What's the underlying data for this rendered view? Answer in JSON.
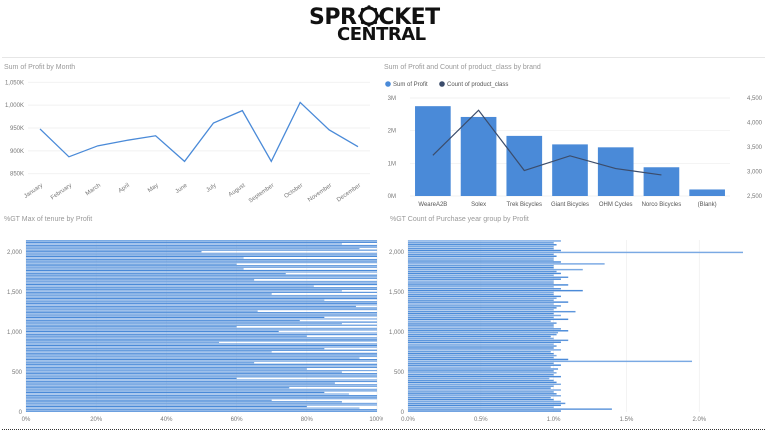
{
  "logo": {
    "line1": "SPR",
    "line1b": "CKET",
    "line2": "CENTRAL"
  },
  "titles": {
    "profit_by_month": "Sum of Profit by Month",
    "profit_count_brand": "Sum of Profit and Count of product_class by brand",
    "tenure": "%GT Max of tenure by Profit",
    "purchase": "%GT Count of Purchase year group by Profit"
  },
  "legend": {
    "bar": "Sum of Profit",
    "line": "Count of product_class"
  },
  "colors": {
    "bar": "#4a8ad8",
    "line": "#3b4c6b",
    "grid": "#eeeeee"
  },
  "chart_data": [
    {
      "type": "line",
      "title": "Sum of Profit by Month",
      "categories": [
        "January",
        "February",
        "March",
        "April",
        "May",
        "June",
        "July",
        "August",
        "September",
        "October",
        "November",
        "December"
      ],
      "values": [
        948,
        887,
        911,
        923,
        933,
        877,
        961,
        988,
        877,
        1006,
        946,
        909
      ],
      "yticks": [
        "850K",
        "900K",
        "950K",
        "1,000K",
        "1,050K"
      ],
      "ylim": [
        845,
        1055
      ],
      "grid": true
    },
    {
      "type": "bar",
      "title": "Sum of Profit and Count of product_class by brand",
      "categories": [
        "WeareA2B",
        "Solex",
        "Trek Bicycles",
        "Giant Bicycles",
        "OHM Cycles",
        "Norco Bicycles",
        "(Blank)"
      ],
      "series": [
        {
          "name": "Sum of Profit",
          "kind": "bar",
          "values": [
            2.75,
            2.42,
            1.84,
            1.58,
            1.49,
            0.88,
            0.2
          ]
        },
        {
          "name": "Count of product_class",
          "kind": "line",
          "values": [
            3330,
            4250,
            3020,
            3320,
            3060,
            2930,
            null
          ]
        }
      ],
      "yticks_left": [
        "0M",
        "1M",
        "2M",
        "3M"
      ],
      "ylim_left": [
        0,
        3
      ],
      "yticks_right": [
        "2,500",
        "3,000",
        "3,500",
        "4,000",
        "4,500"
      ],
      "ylim_right": [
        2500,
        4500
      ],
      "legend": "top-left"
    },
    {
      "type": "bar",
      "title": "%GT Max of tenure by Profit",
      "orientation": "horizontal",
      "xticks": [
        "0%",
        "20%",
        "40%",
        "60%",
        "80%",
        "100%"
      ],
      "xlim": [
        0,
        100
      ],
      "yticks": [
        "0",
        "500",
        "1,000",
        "1,500",
        "2,000"
      ],
      "ylim": [
        0,
        2150
      ],
      "values": [
        100,
        100,
        95,
        80,
        100,
        100,
        90,
        70,
        100,
        100,
        100,
        92,
        85,
        100,
        100,
        75,
        100,
        100,
        88,
        100,
        100,
        60,
        100,
        100,
        100,
        90,
        100,
        80,
        100,
        100,
        100,
        65,
        100,
        100,
        95,
        100,
        100,
        100,
        70,
        100,
        85,
        100,
        100,
        100,
        55,
        100,
        100,
        100,
        80,
        100,
        100,
        72,
        100,
        100,
        60,
        100,
        90,
        100,
        78,
        100,
        85,
        100,
        100,
        100,
        66,
        100,
        100,
        94,
        100,
        100,
        100,
        85,
        100,
        100,
        100,
        70,
        100,
        90,
        100,
        100,
        82,
        100,
        100,
        100,
        65,
        100,
        100,
        100,
        74,
        100,
        100,
        62,
        100,
        100,
        60,
        100,
        100,
        100,
        62,
        100,
        100,
        100,
        50,
        100,
        95,
        100,
        100,
        90,
        100,
        100
      ]
    },
    {
      "type": "bar",
      "title": "%GT Count of Purchase year group by Profit",
      "orientation": "horizontal",
      "xticks": [
        "0.0%",
        "0.5%",
        "1.0%",
        "1.5%",
        "2.0%"
      ],
      "xlim": [
        0,
        2.3
      ],
      "yticks": [
        "0",
        "500",
        "1,000",
        "1,500",
        "2,000"
      ],
      "ylim": [
        0,
        2150
      ],
      "values": [
        1.05,
        1.4,
        1.0,
        1.05,
        1.08,
        1.05,
        1.0,
        0.98,
        1.05,
        1.02,
        1.0,
        1.05,
        0.98,
        1.0,
        1.05,
        1.02,
        1.0,
        0.97,
        1.05,
        1.0,
        1.02,
        1.0,
        1.03,
        0.98,
        1.05,
        1.0,
        1.95,
        1.1,
        1.0,
        1.02,
        1.0,
        0.98,
        1.05,
        1.0,
        1.02,
        1.0,
        1.05,
        1.1,
        1.0,
        0.98,
        1.02,
        1.03,
        1.1,
        1.05,
        1.0,
        1.0,
        1.02,
        0.98,
        1.1,
        1.0,
        1.05,
        1.0,
        1.15,
        1.0,
        1.02,
        1.05,
        1.0,
        1.1,
        1.0,
        1.02,
        1.05,
        1.0,
        1.0,
        1.2,
        1.05,
        1.0,
        1.1,
        1.0,
        1.0,
        1.05,
        1.1,
        1.0,
        1.05,
        1.02,
        1.2,
        1.0,
        1.0,
        1.35,
        1.05,
        1.0,
        1.0,
        1.02,
        1.0,
        2.3,
        1.05,
        1.0,
        1.0,
        1.02,
        1.0,
        1.05
      ]
    }
  ]
}
